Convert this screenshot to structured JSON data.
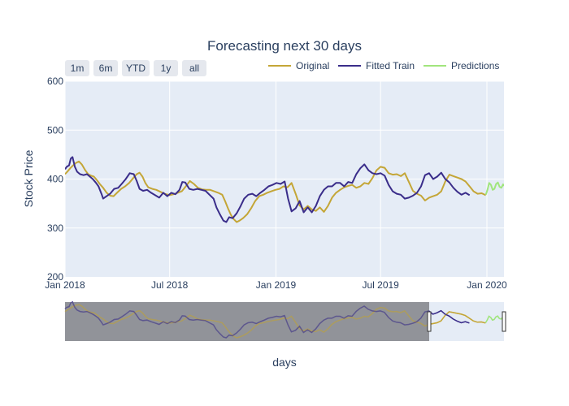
{
  "chart_data": {
    "type": "line",
    "title": "Forecasting next 30 days",
    "xlabel": "days",
    "ylabel": "Stock Price",
    "ylim": [
      200,
      600
    ],
    "xlim": [
      "2018-01-01",
      "2020-01-31"
    ],
    "y_ticks": [
      "200",
      "300",
      "400",
      "500",
      "600"
    ],
    "x_ticks": [
      {
        "date": "2018-01-01",
        "label": "Jan 2018"
      },
      {
        "date": "2018-07-01",
        "label": "Jul 2018"
      },
      {
        "date": "2019-01-01",
        "label": "Jan 2019"
      },
      {
        "date": "2019-07-01",
        "label": "Jul 2019"
      },
      {
        "date": "2020-01-01",
        "label": "Jan 2020"
      }
    ],
    "legend_position": "top-right",
    "grid": true,
    "range_selector": [
      "1m",
      "6m",
      "YTD",
      "1y",
      "all"
    ],
    "series": [
      {
        "name": "Original",
        "color": "#c4a637",
        "points": [
          [
            "2018-01-01",
            410
          ],
          [
            "2018-01-05",
            415
          ],
          [
            "2018-01-10",
            422
          ],
          [
            "2018-01-15",
            428
          ],
          [
            "2018-01-20",
            433
          ],
          [
            "2018-01-25",
            436
          ],
          [
            "2018-01-30",
            430
          ],
          [
            "2018-02-05",
            418
          ],
          [
            "2018-02-10",
            410
          ],
          [
            "2018-02-15",
            407
          ],
          [
            "2018-02-20",
            405
          ],
          [
            "2018-02-25",
            398
          ],
          [
            "2018-03-02",
            390
          ],
          [
            "2018-03-08",
            382
          ],
          [
            "2018-03-14",
            372
          ],
          [
            "2018-03-20",
            366
          ],
          [
            "2018-03-26",
            365
          ],
          [
            "2018-04-01",
            372
          ],
          [
            "2018-04-08",
            380
          ],
          [
            "2018-04-15",
            385
          ],
          [
            "2018-04-22",
            392
          ],
          [
            "2018-04-29",
            402
          ],
          [
            "2018-05-05",
            410
          ],
          [
            "2018-05-10",
            413
          ],
          [
            "2018-05-15",
            405
          ],
          [
            "2018-05-20",
            392
          ],
          [
            "2018-05-25",
            383
          ],
          [
            "2018-06-01",
            380
          ],
          [
            "2018-06-08",
            378
          ],
          [
            "2018-06-15",
            374
          ],
          [
            "2018-06-22",
            370
          ],
          [
            "2018-07-01",
            367
          ],
          [
            "2018-07-08",
            369
          ],
          [
            "2018-07-15",
            372
          ],
          [
            "2018-07-22",
            375
          ],
          [
            "2018-07-29",
            385
          ],
          [
            "2018-08-05",
            396
          ],
          [
            "2018-08-12",
            390
          ],
          [
            "2018-08-19",
            382
          ],
          [
            "2018-08-26",
            379
          ],
          [
            "2018-09-02",
            378
          ],
          [
            "2018-09-09",
            378
          ],
          [
            "2018-09-16",
            375
          ],
          [
            "2018-09-23",
            372
          ],
          [
            "2018-09-30",
            368
          ],
          [
            "2018-10-05",
            355
          ],
          [
            "2018-10-10",
            340
          ],
          [
            "2018-10-15",
            327
          ],
          [
            "2018-10-20",
            318
          ],
          [
            "2018-10-25",
            312
          ],
          [
            "2018-10-30",
            315
          ],
          [
            "2018-11-05",
            320
          ],
          [
            "2018-11-12",
            328
          ],
          [
            "2018-11-19",
            340
          ],
          [
            "2018-11-26",
            355
          ],
          [
            "2018-12-03",
            365
          ],
          [
            "2018-12-10",
            368
          ],
          [
            "2018-12-17",
            372
          ],
          [
            "2018-12-24",
            375
          ],
          [
            "2018-12-31",
            378
          ],
          [
            "2019-01-07",
            380
          ],
          [
            "2019-01-14",
            385
          ],
          [
            "2019-01-21",
            383
          ],
          [
            "2019-01-28",
            392
          ],
          [
            "2019-02-04",
            370
          ],
          [
            "2019-02-11",
            346
          ],
          [
            "2019-02-18",
            338
          ],
          [
            "2019-02-25",
            345
          ],
          [
            "2019-03-04",
            338
          ],
          [
            "2019-03-11",
            335
          ],
          [
            "2019-03-18",
            342
          ],
          [
            "2019-03-25",
            333
          ],
          [
            "2019-04-01",
            345
          ],
          [
            "2019-04-08",
            362
          ],
          [
            "2019-04-15",
            372
          ],
          [
            "2019-04-22",
            378
          ],
          [
            "2019-04-29",
            383
          ],
          [
            "2019-05-06",
            386
          ],
          [
            "2019-05-13",
            388
          ],
          [
            "2019-05-20",
            382
          ],
          [
            "2019-05-27",
            385
          ],
          [
            "2019-06-03",
            392
          ],
          [
            "2019-06-10",
            390
          ],
          [
            "2019-06-17",
            402
          ],
          [
            "2019-06-24",
            418
          ],
          [
            "2019-07-01",
            425
          ],
          [
            "2019-07-08",
            423
          ],
          [
            "2019-07-15",
            412
          ],
          [
            "2019-07-22",
            409
          ],
          [
            "2019-07-29",
            410
          ],
          [
            "2019-08-05",
            406
          ],
          [
            "2019-08-12",
            412
          ],
          [
            "2019-08-19",
            394
          ],
          [
            "2019-08-26",
            376
          ],
          [
            "2019-09-02",
            370
          ],
          [
            "2019-09-09",
            366
          ],
          [
            "2019-09-16",
            356
          ],
          [
            "2019-09-23",
            362
          ],
          [
            "2019-09-30",
            365
          ],
          [
            "2019-10-07",
            368
          ],
          [
            "2019-10-14",
            375
          ],
          [
            "2019-10-21",
            395
          ],
          [
            "2019-10-28",
            409
          ],
          [
            "2019-11-04",
            406
          ],
          [
            "2019-11-11",
            403
          ],
          [
            "2019-11-18",
            400
          ],
          [
            "2019-11-25",
            395
          ],
          [
            "2019-12-02",
            385
          ],
          [
            "2019-12-09",
            375
          ],
          [
            "2019-12-16",
            370
          ],
          [
            "2019-12-23",
            371
          ],
          [
            "2019-12-30",
            367
          ]
        ]
      },
      {
        "name": "Fitted Train",
        "color": "#3a2d8a",
        "points": [
          [
            "2018-01-01",
            420
          ],
          [
            "2018-01-04",
            425
          ],
          [
            "2018-01-08",
            428
          ],
          [
            "2018-01-11",
            442
          ],
          [
            "2018-01-14",
            445
          ],
          [
            "2018-01-18",
            425
          ],
          [
            "2018-01-22",
            415
          ],
          [
            "2018-01-27",
            410
          ],
          [
            "2018-02-02",
            408
          ],
          [
            "2018-02-08",
            410
          ],
          [
            "2018-02-13",
            405
          ],
          [
            "2018-02-18",
            400
          ],
          [
            "2018-02-23",
            393
          ],
          [
            "2018-02-28",
            385
          ],
          [
            "2018-03-05",
            370
          ],
          [
            "2018-03-08",
            360
          ],
          [
            "2018-03-14",
            365
          ],
          [
            "2018-03-20",
            370
          ],
          [
            "2018-03-27",
            380
          ],
          [
            "2018-04-03",
            382
          ],
          [
            "2018-04-09",
            390
          ],
          [
            "2018-04-16",
            400
          ],
          [
            "2018-04-23",
            412
          ],
          [
            "2018-04-30",
            410
          ],
          [
            "2018-05-05",
            396
          ],
          [
            "2018-05-10",
            380
          ],
          [
            "2018-05-16",
            376
          ],
          [
            "2018-05-23",
            378
          ],
          [
            "2018-05-30",
            372
          ],
          [
            "2018-06-06",
            367
          ],
          [
            "2018-06-13",
            362
          ],
          [
            "2018-06-20",
            372
          ],
          [
            "2018-06-27",
            365
          ],
          [
            "2018-07-04",
            372
          ],
          [
            "2018-07-11",
            369
          ],
          [
            "2018-07-18",
            378
          ],
          [
            "2018-07-23",
            394
          ],
          [
            "2018-07-28",
            393
          ],
          [
            "2018-08-04",
            380
          ],
          [
            "2018-08-11",
            378
          ],
          [
            "2018-08-18",
            380
          ],
          [
            "2018-08-25",
            378
          ],
          [
            "2018-09-01",
            376
          ],
          [
            "2018-09-08",
            368
          ],
          [
            "2018-09-15",
            360
          ],
          [
            "2018-09-20",
            342
          ],
          [
            "2018-09-26",
            328
          ],
          [
            "2018-10-02",
            315
          ],
          [
            "2018-10-07",
            312
          ],
          [
            "2018-10-12",
            322
          ],
          [
            "2018-10-18",
            320
          ],
          [
            "2018-10-25",
            330
          ],
          [
            "2018-11-01",
            345
          ],
          [
            "2018-11-07",
            360
          ],
          [
            "2018-11-14",
            368
          ],
          [
            "2018-11-21",
            370
          ],
          [
            "2018-11-28",
            365
          ],
          [
            "2018-12-05",
            372
          ],
          [
            "2018-12-12",
            378
          ],
          [
            "2018-12-19",
            385
          ],
          [
            "2018-12-26",
            388
          ],
          [
            "2019-01-02",
            392
          ],
          [
            "2019-01-09",
            390
          ],
          [
            "2019-01-16",
            395
          ],
          [
            "2019-01-22",
            360
          ],
          [
            "2019-01-28",
            334
          ],
          [
            "2019-02-04",
            340
          ],
          [
            "2019-02-11",
            355
          ],
          [
            "2019-02-18",
            332
          ],
          [
            "2019-02-25",
            342
          ],
          [
            "2019-03-04",
            332
          ],
          [
            "2019-03-11",
            345
          ],
          [
            "2019-03-18",
            365
          ],
          [
            "2019-03-25",
            378
          ],
          [
            "2019-04-01",
            385
          ],
          [
            "2019-04-08",
            385
          ],
          [
            "2019-04-15",
            392
          ],
          [
            "2019-04-22",
            392
          ],
          [
            "2019-04-29",
            385
          ],
          [
            "2019-05-06",
            394
          ],
          [
            "2019-05-13",
            392
          ],
          [
            "2019-05-20",
            410
          ],
          [
            "2019-05-27",
            422
          ],
          [
            "2019-06-03",
            430
          ],
          [
            "2019-06-10",
            418
          ],
          [
            "2019-06-17",
            412
          ],
          [
            "2019-06-24",
            410
          ],
          [
            "2019-07-01",
            412
          ],
          [
            "2019-07-08",
            407
          ],
          [
            "2019-07-15",
            388
          ],
          [
            "2019-07-22",
            375
          ],
          [
            "2019-07-29",
            370
          ],
          [
            "2019-08-05",
            368
          ],
          [
            "2019-08-12",
            360
          ],
          [
            "2019-08-19",
            362
          ],
          [
            "2019-08-26",
            366
          ],
          [
            "2019-09-02",
            372
          ],
          [
            "2019-09-09",
            385
          ],
          [
            "2019-09-16",
            408
          ],
          [
            "2019-09-23",
            412
          ],
          [
            "2019-09-30",
            400
          ],
          [
            "2019-10-07",
            405
          ],
          [
            "2019-10-14",
            413
          ],
          [
            "2019-10-21",
            400
          ],
          [
            "2019-10-28",
            393
          ],
          [
            "2019-11-04",
            382
          ],
          [
            "2019-11-11",
            374
          ],
          [
            "2019-11-18",
            368
          ],
          [
            "2019-11-25",
            372
          ],
          [
            "2019-12-02",
            367
          ]
        ]
      },
      {
        "name": "Predictions",
        "color": "#a1e57d",
        "points": [
          [
            "2019-12-30",
            368
          ],
          [
            "2020-01-02",
            378
          ],
          [
            "2020-01-05",
            392
          ],
          [
            "2020-01-08",
            388
          ],
          [
            "2020-01-11",
            378
          ],
          [
            "2020-01-14",
            380
          ],
          [
            "2020-01-17",
            390
          ],
          [
            "2020-01-20",
            393
          ],
          [
            "2020-01-23",
            384
          ],
          [
            "2020-01-26",
            382
          ],
          [
            "2020-01-29",
            389
          ],
          [
            "2020-01-31",
            386
          ]
        ]
      }
    ]
  }
}
